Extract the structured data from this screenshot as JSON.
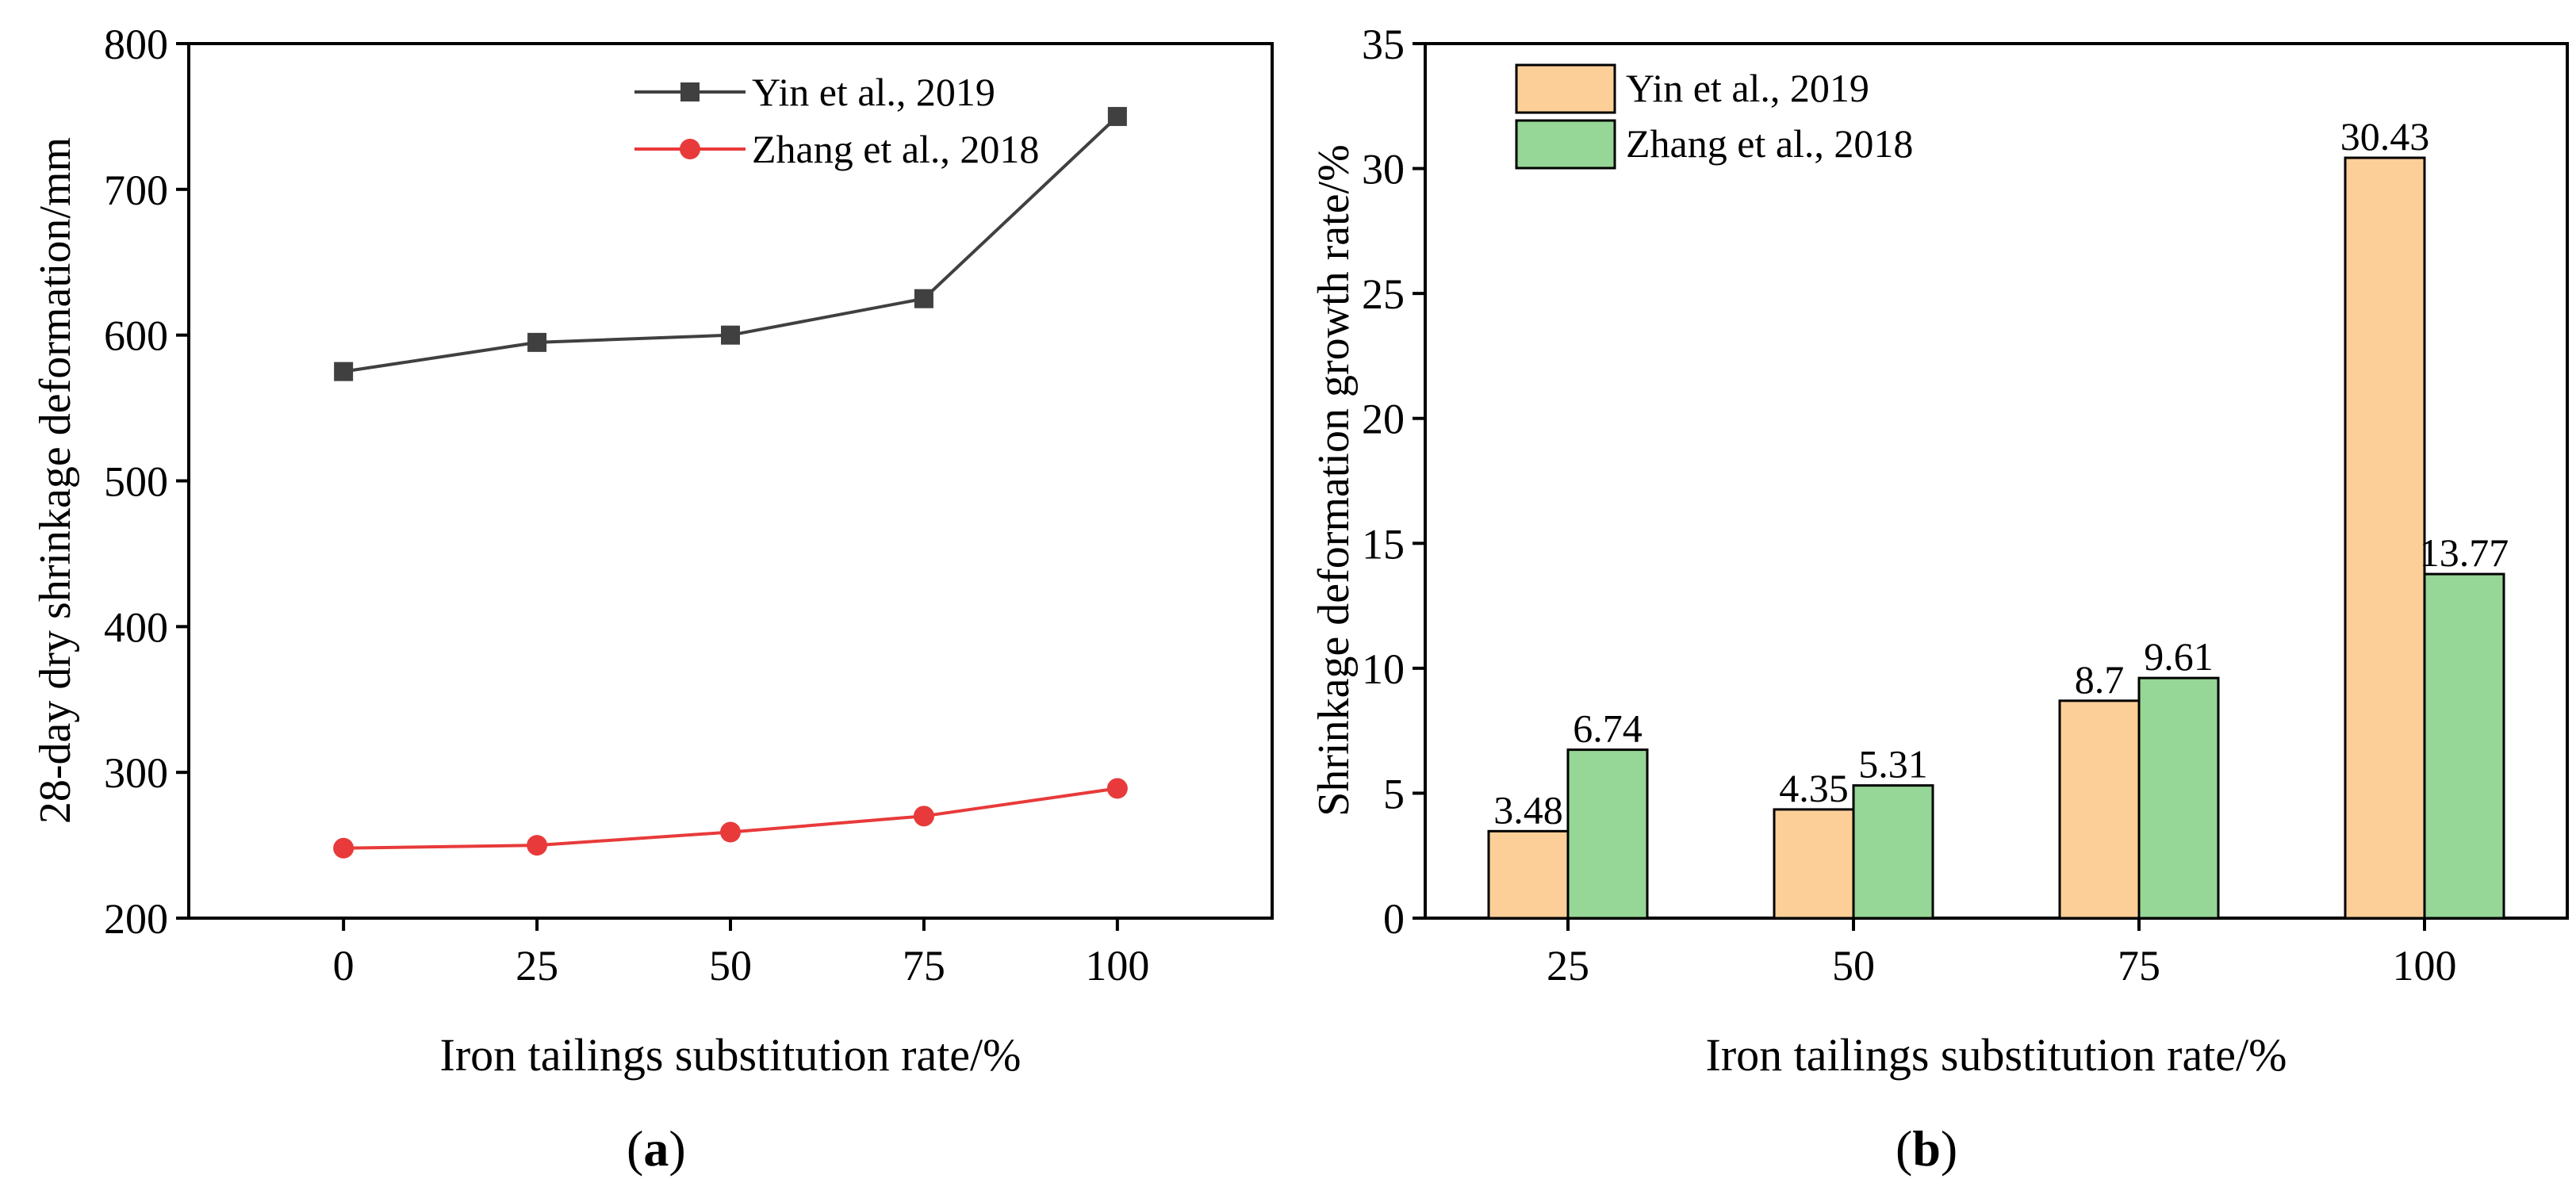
{
  "colors": {
    "axis": "#000000",
    "yin_line": "#404040",
    "zhang_line": "#e83a3a",
    "yin_bar": "#fccf98",
    "zhang_bar": "#96d696",
    "bar_edge": "#000000"
  },
  "chart_data": [
    {
      "type": "line",
      "panel_label": "a",
      "title": "",
      "xlabel": "Iron tailings substitution rate/%",
      "ylabel": "28-day dry shrinkage deformation/mm",
      "x": [
        0,
        25,
        50,
        75,
        100
      ],
      "x_tick_labels": [
        "0",
        "25",
        "50",
        "75",
        "100"
      ],
      "xlim": [
        -20,
        120
      ],
      "ylim": [
        200,
        800
      ],
      "y_ticks": [
        200,
        300,
        400,
        500,
        600,
        700,
        800
      ],
      "y_tick_labels": [
        "200",
        "300",
        "400",
        "500",
        "600",
        "700",
        "800"
      ],
      "legend_position": "top-right",
      "series": [
        {
          "name": "Yin et al., 2019",
          "marker": "square",
          "values": [
            575,
            595,
            600,
            625,
            750
          ]
        },
        {
          "name": "Zhang et al., 2018",
          "marker": "circle",
          "values": [
            248,
            250,
            259,
            270,
            289
          ]
        }
      ]
    },
    {
      "type": "bar",
      "panel_label": "b",
      "title": "",
      "xlabel": "Iron tailings substitution rate/%",
      "ylabel": "Shrinkage deformation growth rate/%",
      "categories": [
        "25",
        "50",
        "75",
        "100"
      ],
      "ylim": [
        0,
        35
      ],
      "y_ticks": [
        0,
        5,
        10,
        15,
        20,
        25,
        30,
        35
      ],
      "y_tick_labels": [
        "0",
        "5",
        "10",
        "15",
        "20",
        "25",
        "30",
        "35"
      ],
      "legend_position": "top-left",
      "series": [
        {
          "name": "Yin et al., 2019",
          "values": [
            3.48,
            4.35,
            8.7,
            30.43
          ],
          "labels": [
            "3.48",
            "4.35",
            "8.7",
            "30.43"
          ]
        },
        {
          "name": "Zhang et al., 2018",
          "values": [
            6.74,
            5.31,
            9.61,
            13.77
          ],
          "labels": [
            "6.74",
            "5.31",
            "9.61",
            "13.77"
          ]
        }
      ]
    }
  ]
}
